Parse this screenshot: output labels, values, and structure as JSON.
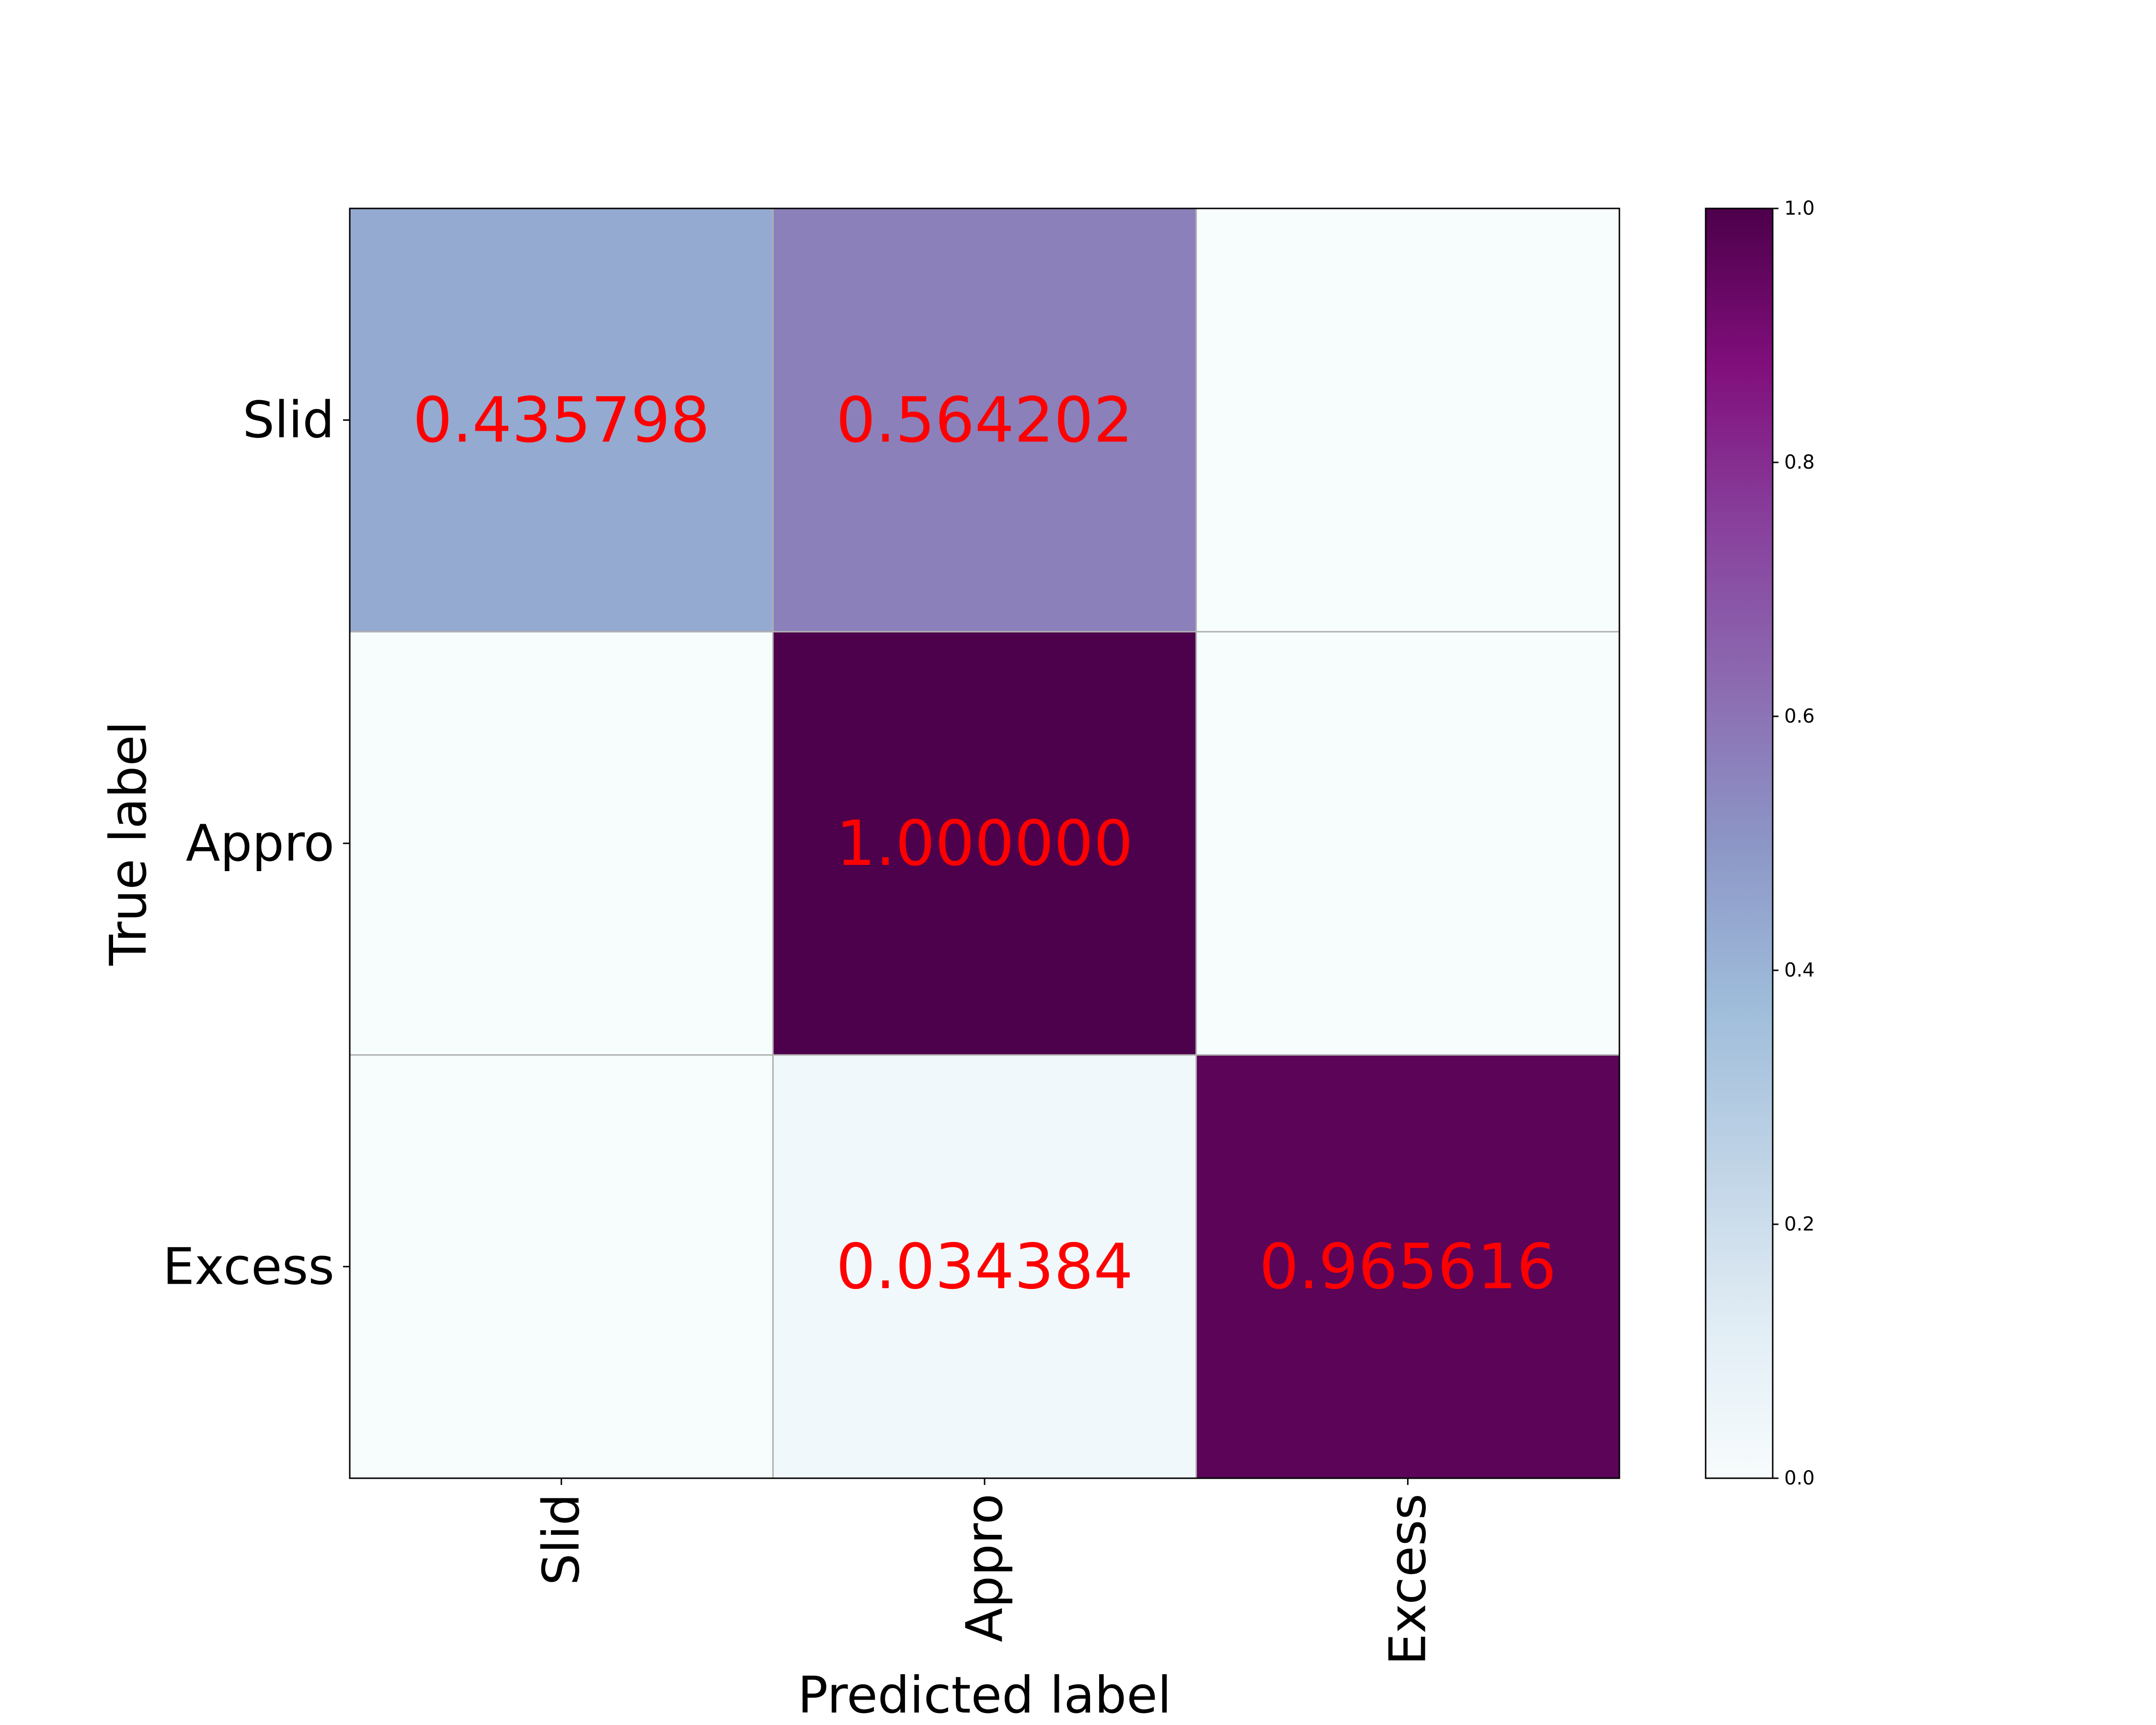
{
  "chart_data": {
    "type": "heatmap",
    "title": "",
    "xlabel": "Predicted label",
    "ylabel": "True label",
    "x_categories": [
      "Slid",
      "Appro",
      "Excess"
    ],
    "y_categories": [
      "Slid",
      "Appro",
      "Excess"
    ],
    "values": [
      [
        0.435798,
        0.564202,
        0.0
      ],
      [
        0.0,
        1.0,
        0.0
      ],
      [
        0.0,
        0.034384,
        0.965616
      ]
    ],
    "cell_labels": [
      [
        "0.435798",
        "0.564202",
        ""
      ],
      [
        "",
        "1.000000",
        ""
      ],
      [
        "",
        "0.034384",
        "0.965616"
      ]
    ],
    "colormap": "BuPu",
    "cell_label_color": "#ff0000",
    "colorbar": {
      "range": [
        0.0,
        1.0
      ],
      "ticks": [
        "0.0",
        "0.2",
        "0.4",
        "0.6",
        "0.8",
        "1.0"
      ]
    }
  }
}
